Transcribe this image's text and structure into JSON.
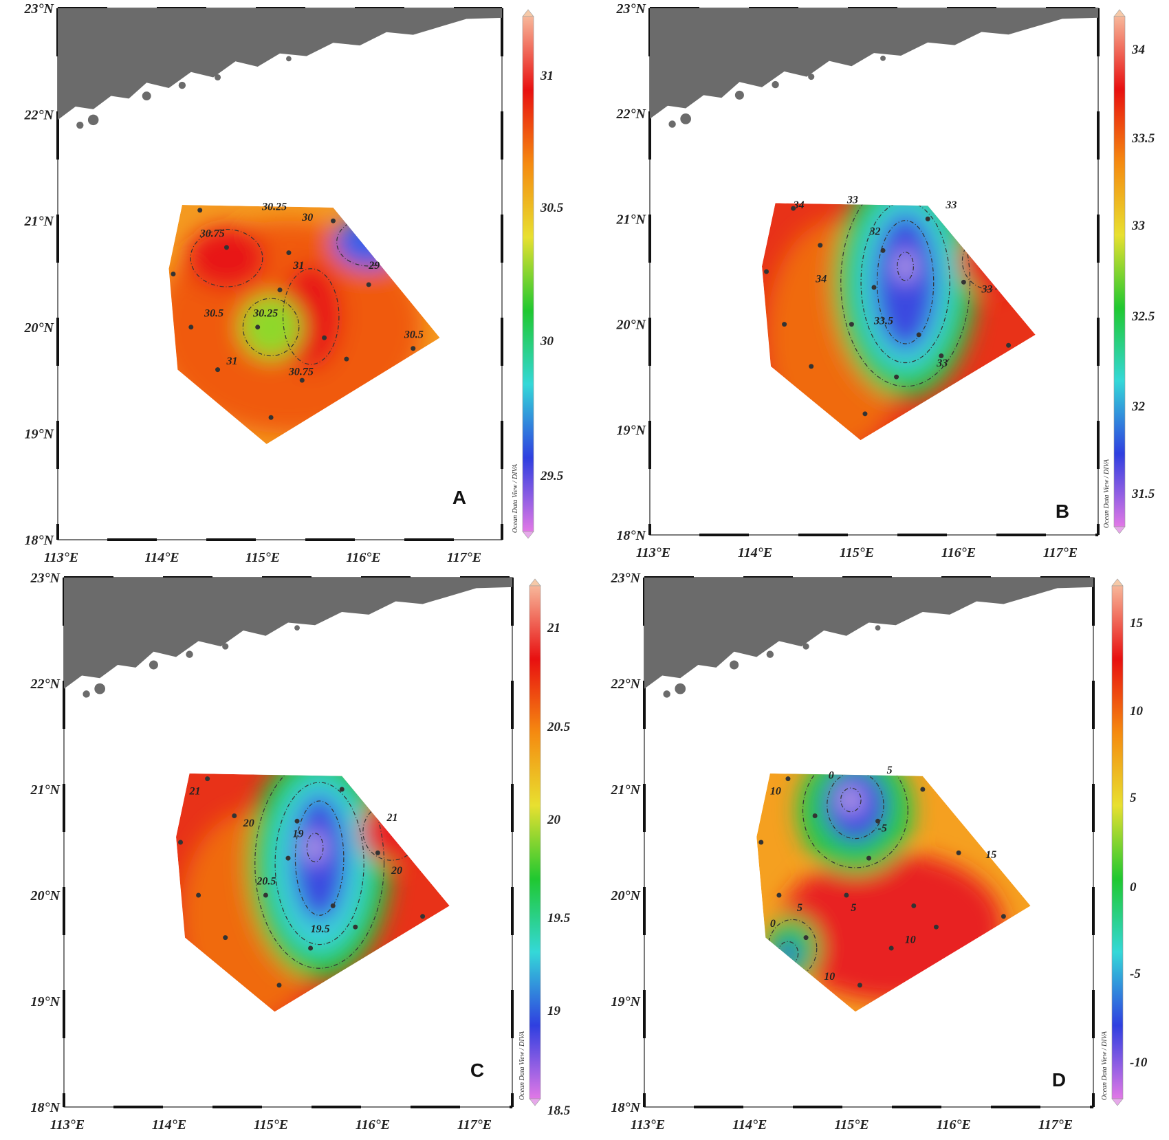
{
  "figure": {
    "x_ticks": [
      "113°E",
      "114°E",
      "115°E",
      "116°E",
      "117°E"
    ],
    "y_ticks": [
      "18°N",
      "19°N",
      "20°N",
      "21°N",
      "22°N",
      "23°N"
    ],
    "credit": "Ocean Data View / DIVA",
    "land_color": "#6b6b6b",
    "station_color": "#333333",
    "colormap": [
      "#e178e6",
      "#2f3fe0",
      "#34d8d8",
      "#20c830",
      "#e8e030",
      "#f58a10",
      "#e81010",
      "#f7b79a"
    ]
  },
  "panels": [
    {
      "letter": "A",
      "colorbar_ticks": [
        "29.5",
        "30",
        "30.5",
        "31"
      ],
      "contour_labels": [
        "30.25",
        "30",
        "30.75",
        "31",
        "30.25",
        "30.5",
        "30.5",
        "30.75",
        "29",
        "31"
      ],
      "regions": [
        {
          "shape": "blob",
          "color": "#f05a10"
        },
        {
          "shape": "blob",
          "color": "#e81818"
        },
        {
          "shape": "blob",
          "color": "#e81818"
        },
        {
          "shape": "blob",
          "color": "#8fd82a"
        },
        {
          "shape": "blob",
          "color": "#3a5ee8"
        }
      ]
    },
    {
      "letter": "B",
      "colorbar_ticks": [
        "31.5",
        "32",
        "32.5",
        "33",
        "33.5",
        "34"
      ],
      "contour_labels": [
        "34",
        "34",
        "33.5",
        "33",
        "32",
        "33",
        "33",
        "33"
      ],
      "regions": [
        {
          "shape": "band",
          "color": "#f06a10"
        },
        {
          "shape": "band",
          "color": "#2ec84a"
        },
        {
          "shape": "band",
          "color": "#3ad2d8"
        },
        {
          "shape": "core",
          "color": "#3a48e0"
        },
        {
          "shape": "core",
          "color": "#c9a8e8"
        },
        {
          "shape": "edge",
          "color": "#e82020"
        }
      ]
    },
    {
      "letter": "C",
      "colorbar_ticks": [
        "18.5",
        "19",
        "19.5",
        "20",
        "20.5",
        "21"
      ],
      "contour_labels": [
        "21",
        "20",
        "20.5",
        "19",
        "19.5",
        "21",
        "20"
      ],
      "regions": [
        {
          "shape": "band",
          "color": "#f06a10"
        },
        {
          "shape": "band",
          "color": "#26c83a"
        },
        {
          "shape": "band",
          "color": "#3ad2d8"
        },
        {
          "shape": "core",
          "color": "#3a48e0"
        },
        {
          "shape": "core",
          "color": "#c9a8e8"
        },
        {
          "shape": "edge",
          "color": "#e82020"
        }
      ]
    },
    {
      "letter": "D",
      "colorbar_ticks": [
        "-10",
        "-5",
        "0",
        "5",
        "10",
        "15"
      ],
      "contour_labels": [
        "10",
        "0",
        "5",
        "-5",
        "5",
        "0",
        "5",
        "10",
        "10",
        "15"
      ],
      "regions": [
        {
          "shape": "blob",
          "color": "#e82020"
        },
        {
          "shape": "blob",
          "color": "#24c848"
        },
        {
          "shape": "blob",
          "color": "#3a48e0"
        },
        {
          "shape": "blob",
          "color": "#c9a8e8"
        },
        {
          "shape": "blob",
          "color": "#24c848"
        },
        {
          "shape": "blob",
          "color": "#3a48e0"
        }
      ]
    }
  ]
}
